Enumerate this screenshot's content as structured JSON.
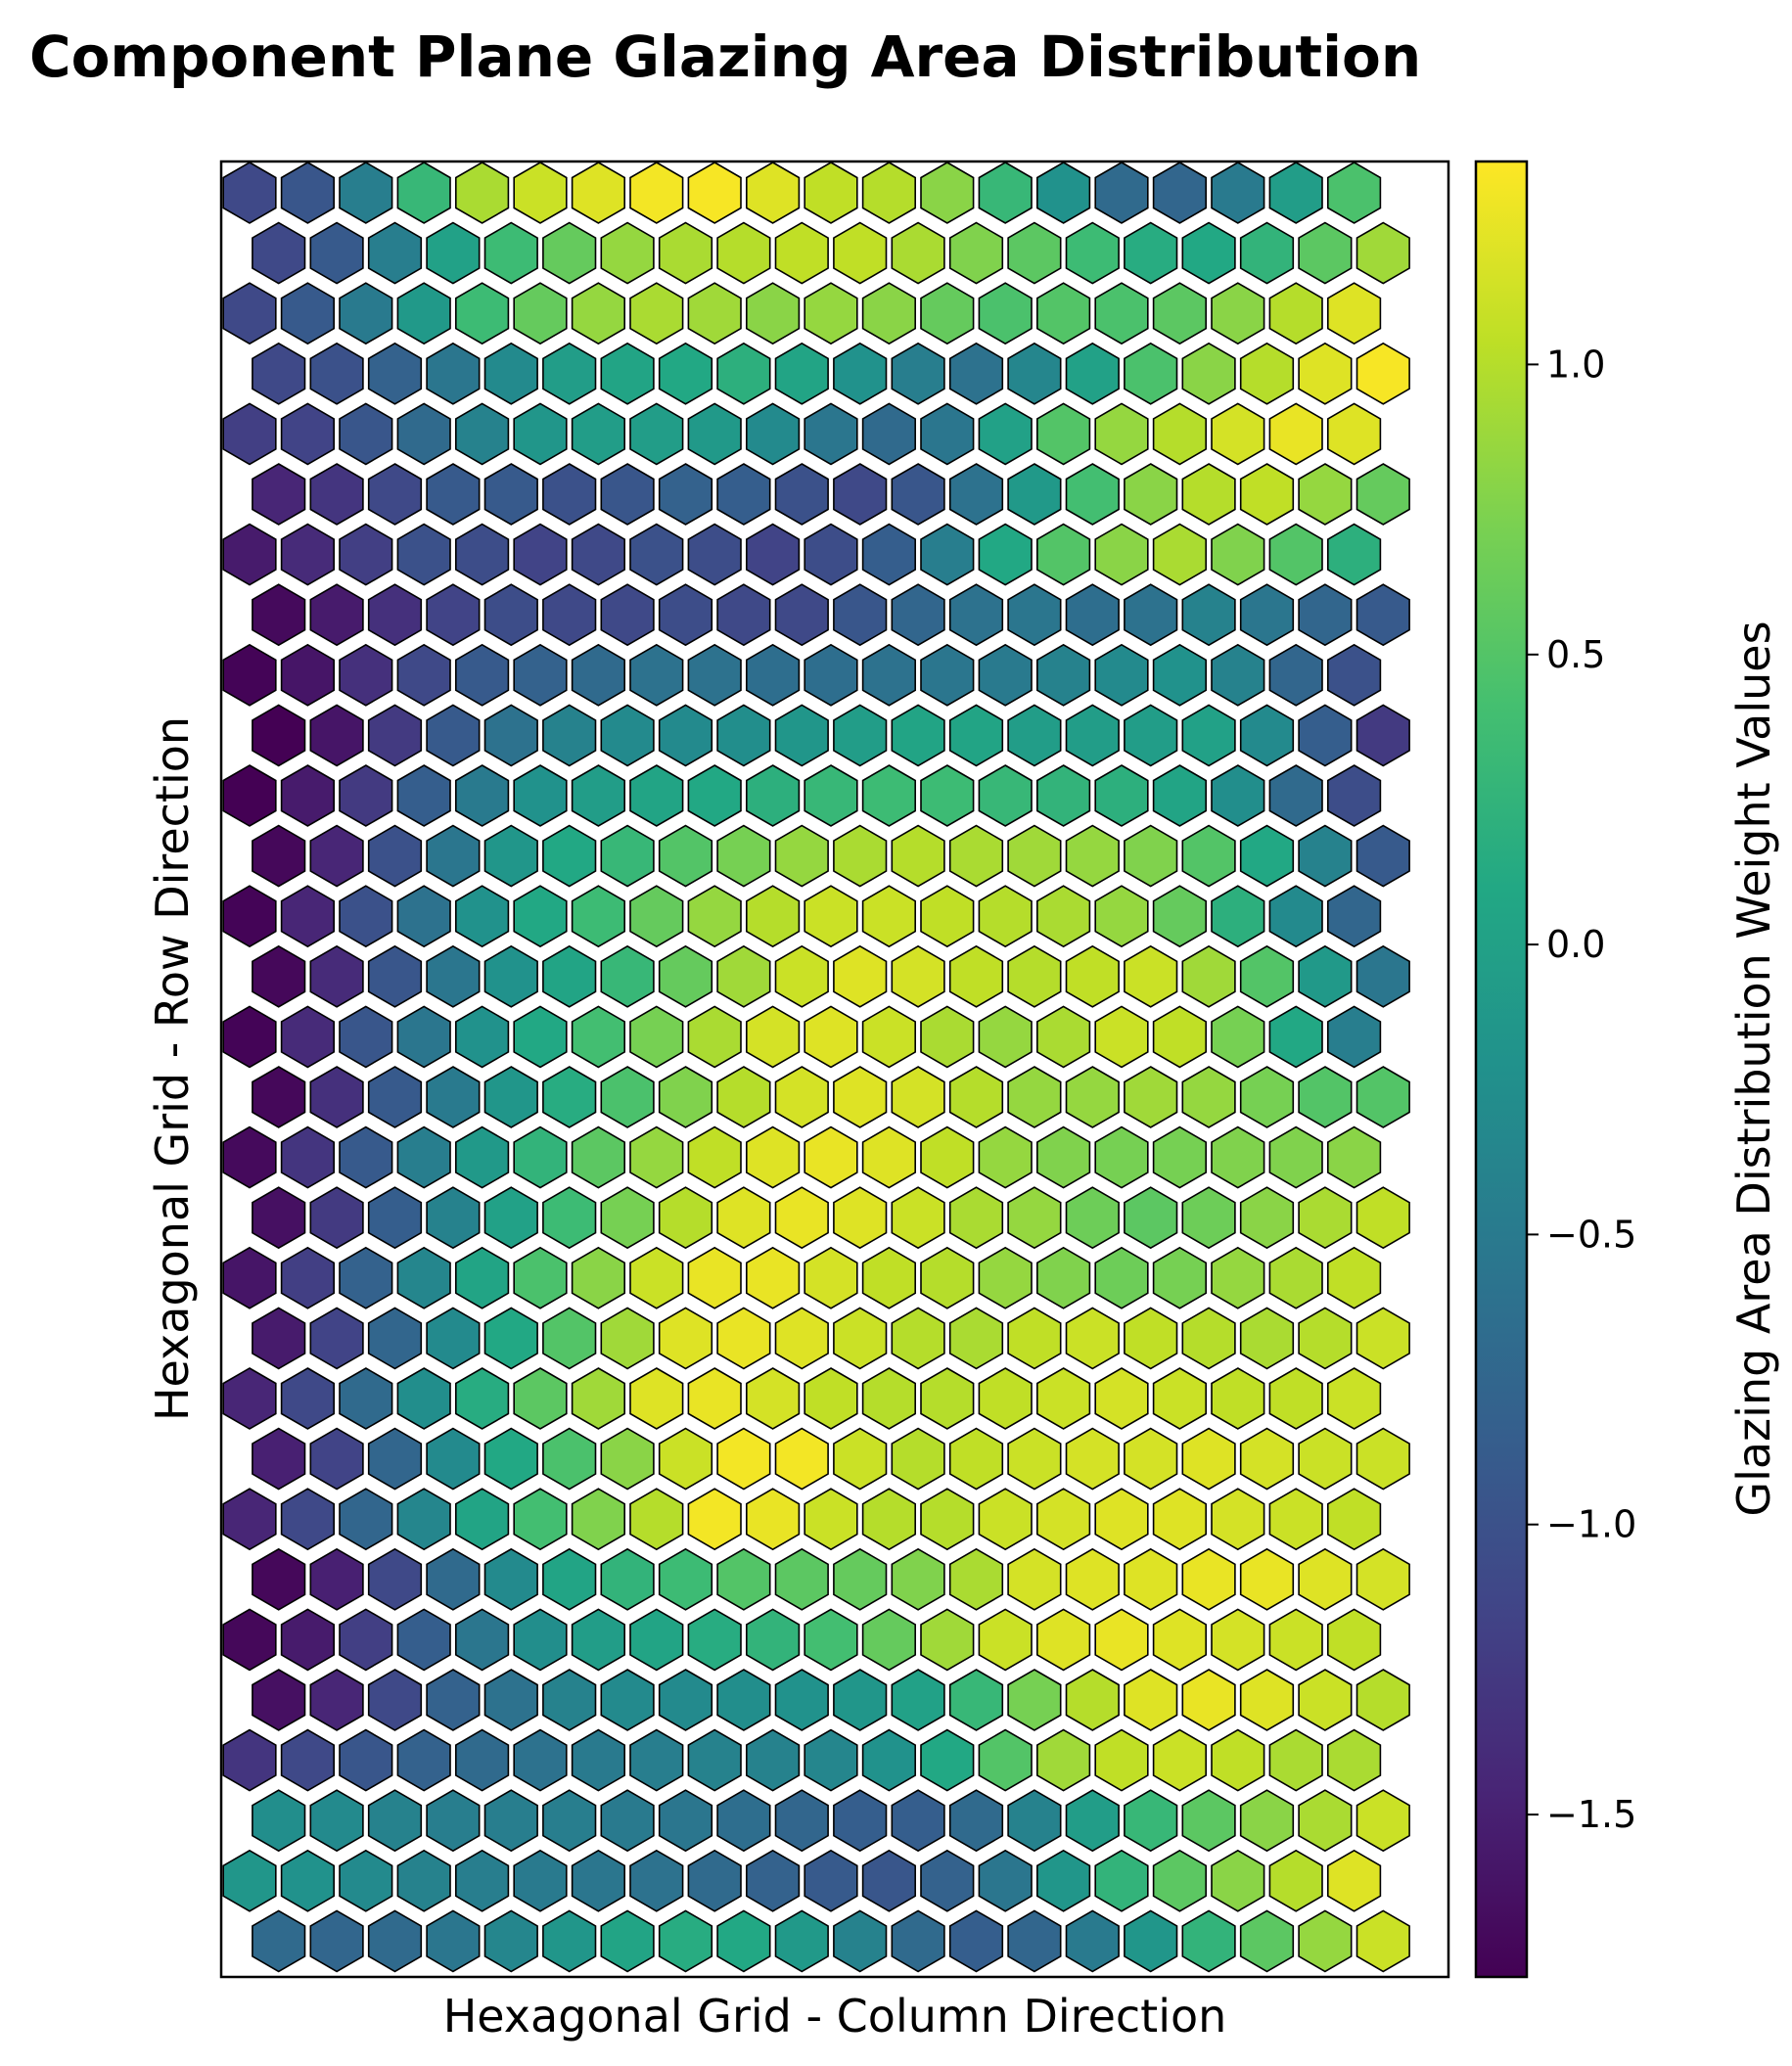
{
  "chart_data": {
    "type": "heatmap",
    "subtype": "hexagonal self-organizing map component plane",
    "title": "Component Plane Glazing Area Distribution",
    "xlabel": "Hexagonal Grid - Column Direction",
    "ylabel": "Hexagonal Grid - Row Direction",
    "colorbar": {
      "label": "Glazing Area Distribution Weight Values",
      "colormap": "viridis",
      "range": [
        -1.78,
        1.35
      ],
      "ticks": [
        -1.5,
        -1.0,
        -0.5,
        0.0,
        0.5,
        1.0
      ],
      "tick_labels": [
        "−1.5",
        "−1.0",
        "−0.5",
        "0.0",
        "0.5",
        "1.0"
      ]
    },
    "grid": {
      "rows": 30,
      "cols": 20,
      "row_order": "top to bottom; odd rows offset half a cell to the right",
      "x_ticks": "none",
      "y_ticks": "none"
    },
    "values": [
      [
        -1.1,
        -0.95,
        -0.45,
        0.3,
        0.95,
        1.1,
        1.2,
        1.3,
        1.32,
        1.2,
        1.05,
        1.0,
        0.8,
        0.3,
        -0.2,
        -0.7,
        -0.75,
        -0.5,
        -0.05,
        0.45
      ],
      [
        -1.1,
        -0.9,
        -0.45,
        0.0,
        0.35,
        0.6,
        0.85,
        0.95,
        1.0,
        1.05,
        1.05,
        0.95,
        0.75,
        0.55,
        0.35,
        0.15,
        0.1,
        0.25,
        0.55,
        0.9
      ],
      [
        -1.1,
        -0.9,
        -0.5,
        -0.1,
        0.35,
        0.6,
        0.85,
        0.95,
        0.9,
        0.8,
        0.85,
        0.8,
        0.6,
        0.45,
        0.5,
        0.45,
        0.55,
        0.8,
        1.0,
        1.2
      ],
      [
        -1.1,
        -1.0,
        -0.8,
        -0.55,
        -0.3,
        -0.05,
        0.05,
        0.1,
        0.2,
        0.05,
        -0.2,
        -0.45,
        -0.6,
        -0.35,
        0.0,
        0.45,
        0.8,
        1.0,
        1.2,
        1.32
      ],
      [
        -1.2,
        -1.15,
        -0.95,
        -0.7,
        -0.4,
        -0.15,
        -0.05,
        -0.05,
        -0.1,
        -0.3,
        -0.55,
        -0.7,
        -0.55,
        0.0,
        0.5,
        0.85,
        1.0,
        1.15,
        1.25,
        1.2
      ],
      [
        -1.45,
        -1.3,
        -1.1,
        -0.9,
        -0.9,
        -1.0,
        -0.95,
        -0.8,
        -0.85,
        -1.0,
        -1.1,
        -0.95,
        -0.6,
        -0.1,
        0.4,
        0.8,
        1.0,
        1.05,
        0.85,
        0.6
      ],
      [
        -1.55,
        -1.4,
        -1.2,
        -1.0,
        -1.05,
        -1.15,
        -1.1,
        -1.0,
        -1.05,
        -1.15,
        -1.05,
        -0.85,
        -0.45,
        0.1,
        0.5,
        0.8,
        0.95,
        0.75,
        0.5,
        0.2
      ],
      [
        -1.7,
        -1.55,
        -1.35,
        -1.15,
        -1.05,
        -1.1,
        -1.1,
        -1.05,
        -1.1,
        -1.1,
        -0.95,
        -0.75,
        -0.6,
        -0.55,
        -0.65,
        -0.6,
        -0.4,
        -0.55,
        -0.75,
        -0.9
      ],
      [
        -1.75,
        -1.6,
        -1.35,
        -1.1,
        -0.9,
        -0.8,
        -0.7,
        -0.6,
        -0.6,
        -0.65,
        -0.65,
        -0.6,
        -0.55,
        -0.5,
        -0.4,
        -0.3,
        -0.2,
        -0.4,
        -0.75,
        -1.0
      ],
      [
        -1.78,
        -1.6,
        -1.25,
        -0.9,
        -0.6,
        -0.4,
        -0.3,
        -0.3,
        -0.25,
        -0.15,
        -0.05,
        0.05,
        0.05,
        -0.05,
        -0.05,
        -0.05,
        0.0,
        -0.3,
        -0.85,
        -1.25
      ],
      [
        -1.78,
        -1.55,
        -1.25,
        -0.85,
        -0.5,
        -0.2,
        -0.05,
        0.05,
        0.1,
        0.2,
        0.3,
        0.35,
        0.35,
        0.3,
        0.25,
        0.2,
        0.05,
        -0.25,
        -0.7,
        -1.05
      ],
      [
        -1.72,
        -1.45,
        -1.0,
        -0.55,
        -0.15,
        0.1,
        0.3,
        0.5,
        0.7,
        0.85,
        0.95,
        1.0,
        0.95,
        0.9,
        0.85,
        0.75,
        0.5,
        0.1,
        -0.4,
        -0.9
      ],
      [
        -1.75,
        -1.45,
        -1.0,
        -0.6,
        -0.2,
        0.1,
        0.35,
        0.6,
        0.85,
        1.0,
        1.1,
        1.1,
        1.05,
        1.0,
        0.95,
        0.85,
        0.6,
        0.2,
        -0.3,
        -0.75
      ],
      [
        -1.72,
        -1.4,
        -0.95,
        -0.55,
        -0.2,
        0.05,
        0.3,
        0.6,
        0.9,
        1.1,
        1.2,
        1.15,
        1.05,
        1.0,
        1.05,
        1.1,
        0.9,
        0.5,
        -0.1,
        -0.55
      ],
      [
        -1.75,
        -1.4,
        -0.95,
        -0.55,
        -0.2,
        0.1,
        0.4,
        0.7,
        0.95,
        1.15,
        1.2,
        1.1,
        0.95,
        0.85,
        0.95,
        1.1,
        1.05,
        0.7,
        0.1,
        -0.45
      ],
      [
        -1.72,
        -1.35,
        -0.9,
        -0.5,
        -0.15,
        0.15,
        0.45,
        0.75,
        1.0,
        1.15,
        1.2,
        1.15,
        1.0,
        0.85,
        0.85,
        0.9,
        0.85,
        0.7,
        0.5,
        0.5
      ],
      [
        -1.7,
        -1.3,
        -0.9,
        -0.45,
        -0.1,
        0.25,
        0.55,
        0.85,
        1.05,
        1.2,
        1.25,
        1.2,
        1.05,
        0.85,
        0.75,
        0.7,
        0.7,
        0.75,
        0.75,
        0.8
      ],
      [
        -1.65,
        -1.25,
        -0.85,
        -0.4,
        0.0,
        0.35,
        0.7,
        1.0,
        1.2,
        1.25,
        1.2,
        1.1,
        0.95,
        0.85,
        0.65,
        0.55,
        0.65,
        0.8,
        0.95,
        1.05
      ],
      [
        -1.6,
        -1.2,
        -0.8,
        -0.35,
        0.05,
        0.45,
        0.8,
        1.1,
        1.25,
        1.25,
        1.15,
        1.05,
        1.0,
        0.85,
        0.75,
        0.65,
        0.7,
        0.85,
        0.95,
        1.05
      ],
      [
        -1.55,
        -1.15,
        -0.75,
        -0.3,
        0.1,
        0.5,
        0.9,
        1.2,
        1.25,
        1.2,
        1.1,
        1.0,
        0.95,
        1.05,
        1.1,
        1.05,
        1.0,
        0.95,
        1.0,
        1.1
      ],
      [
        -1.45,
        -1.1,
        -0.7,
        -0.25,
        0.15,
        0.55,
        0.9,
        1.2,
        1.25,
        1.15,
        1.05,
        1.0,
        1.0,
        1.05,
        1.1,
        1.15,
        1.1,
        1.05,
        1.05,
        1.1
      ],
      [
        -1.5,
        -1.15,
        -0.75,
        -0.3,
        0.1,
        0.45,
        0.8,
        1.1,
        1.3,
        1.3,
        1.1,
        1.0,
        1.05,
        1.1,
        1.15,
        1.15,
        1.2,
        1.15,
        1.1,
        1.1
      ],
      [
        -1.45,
        -1.1,
        -0.75,
        -0.35,
        0.05,
        0.4,
        0.75,
        1.0,
        1.3,
        1.25,
        1.1,
        1.0,
        1.0,
        1.1,
        1.15,
        1.2,
        1.2,
        1.15,
        1.1,
        1.05
      ],
      [
        -1.72,
        -1.5,
        -1.1,
        -0.7,
        -0.3,
        0.05,
        0.25,
        0.35,
        0.5,
        0.55,
        0.6,
        0.75,
        0.95,
        1.15,
        1.2,
        1.2,
        1.25,
        1.25,
        1.2,
        1.15
      ],
      [
        -1.72,
        -1.55,
        -1.2,
        -0.85,
        -0.55,
        -0.25,
        -0.05,
        0.05,
        0.15,
        0.25,
        0.4,
        0.6,
        0.9,
        1.1,
        1.2,
        1.25,
        1.2,
        1.15,
        1.1,
        1.05
      ],
      [
        -1.65,
        -1.45,
        -1.1,
        -0.8,
        -0.6,
        -0.4,
        -0.3,
        -0.3,
        -0.25,
        -0.2,
        -0.15,
        0.0,
        0.3,
        0.7,
        1.0,
        1.2,
        1.25,
        1.2,
        1.1,
        1.0
      ],
      [
        -1.3,
        -1.1,
        -0.95,
        -0.8,
        -0.7,
        -0.6,
        -0.5,
        -0.45,
        -0.4,
        -0.4,
        -0.35,
        -0.2,
        0.1,
        0.5,
        0.9,
        1.05,
        1.1,
        1.05,
        0.95,
        0.95
      ],
      [
        -0.25,
        -0.3,
        -0.4,
        -0.45,
        -0.45,
        -0.45,
        -0.5,
        -0.55,
        -0.65,
        -0.75,
        -0.85,
        -0.85,
        -0.7,
        -0.4,
        -0.05,
        0.3,
        0.55,
        0.8,
        0.95,
        1.1
      ],
      [
        -0.15,
        -0.2,
        -0.3,
        -0.4,
        -0.45,
        -0.5,
        -0.55,
        -0.6,
        -0.7,
        -0.8,
        -0.9,
        -0.95,
        -0.8,
        -0.55,
        -0.15,
        0.25,
        0.55,
        0.8,
        1.0,
        1.2
      ],
      [
        -0.7,
        -0.75,
        -0.7,
        -0.55,
        -0.35,
        -0.15,
        0.05,
        0.15,
        0.1,
        -0.1,
        -0.4,
        -0.7,
        -0.85,
        -0.75,
        -0.5,
        -0.15,
        0.25,
        0.55,
        0.85,
        1.1
      ]
    ]
  }
}
